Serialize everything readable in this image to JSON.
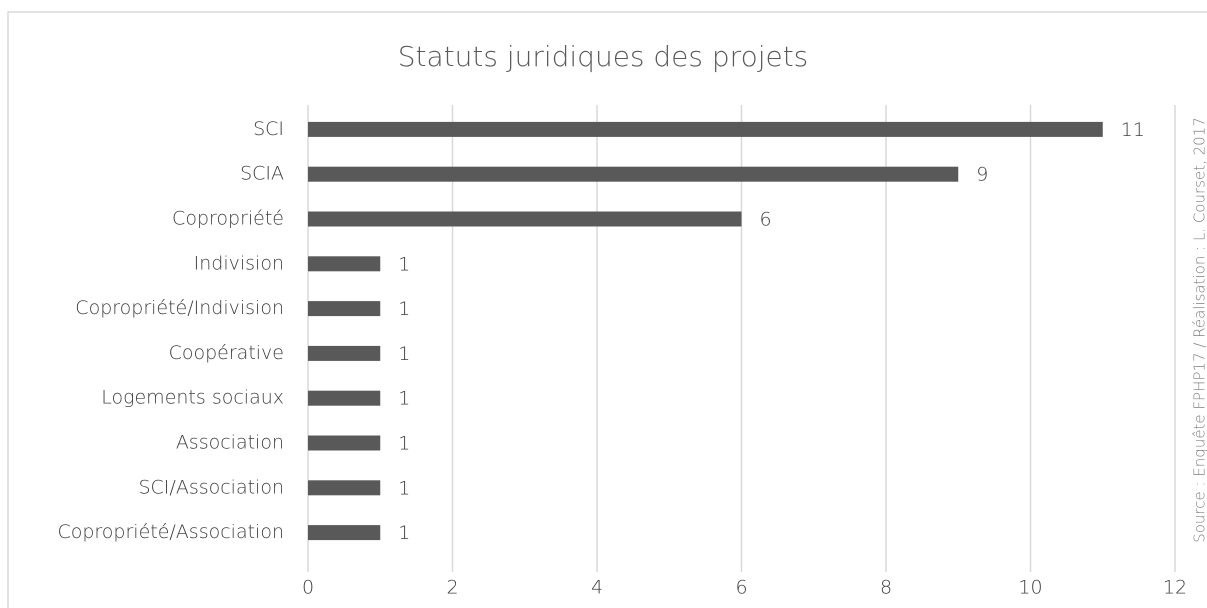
{
  "chart_data": {
    "type": "bar",
    "orientation": "horizontal",
    "title": "Statuts juridiques des projets",
    "categories": [
      "SCI",
      "SCIA",
      "Copropriété",
      "Indivision",
      "Copropriété/Indivision",
      "Coopérative",
      "Logements sociaux",
      "Association",
      "SCI/Association",
      "Copropriété/Association"
    ],
    "values": [
      11,
      9,
      6,
      1,
      1,
      1,
      1,
      1,
      1,
      1
    ],
    "color": "#595959",
    "xlim": [
      0,
      12
    ],
    "xticks": [
      0,
      2,
      4,
      6,
      8,
      10,
      12
    ],
    "grid": true,
    "annotation": "Source : Enquête FPHP17 / Réalisation : L. Courset, 2017"
  }
}
